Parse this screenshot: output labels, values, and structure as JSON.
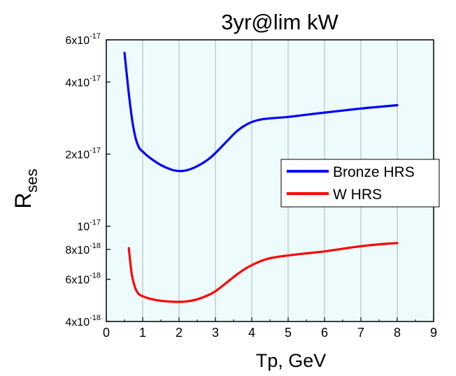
{
  "chart_data": {
    "type": "line",
    "title": "3yr@lim kW",
    "xlabel": "Tp, GeV",
    "ylabel_main": "R",
    "ylabel_sub": "ses",
    "xlim": [
      0,
      9
    ],
    "ylim": [
      4e-18,
      6e-17
    ],
    "yscale": "log",
    "grid": "vertical",
    "background": "#eefbfd",
    "legend_position": "right-center",
    "x_ticks": [
      "0",
      "1",
      "2",
      "3",
      "4",
      "5",
      "6",
      "7",
      "8",
      "9"
    ],
    "y_ticks": [
      {
        "value": 6e-17,
        "mantissa": "6x10",
        "exponent": "-17"
      },
      {
        "value": 4e-17,
        "mantissa": "4x10",
        "exponent": "-17"
      },
      {
        "value": 2e-17,
        "mantissa": "2x10",
        "exponent": "-17"
      },
      {
        "value": 1e-17,
        "mantissa": "10",
        "exponent": "-17"
      },
      {
        "value": 8e-18,
        "mantissa": "8x10",
        "exponent": "-18"
      },
      {
        "value": 6e-18,
        "mantissa": "6x10",
        "exponent": "-18"
      },
      {
        "value": 4e-18,
        "mantissa": "4x10",
        "exponent": "-18"
      }
    ],
    "series": [
      {
        "name": "Bronze HRS",
        "color": "#0000ff",
        "x": [
          0.5,
          0.6,
          0.7,
          0.8,
          0.9,
          1.0,
          1.2,
          1.5,
          1.8,
          2.0,
          2.2,
          2.5,
          2.8,
          3.0,
          3.3,
          3.6,
          3.9,
          4.2,
          4.5,
          5.0,
          5.5,
          6.0,
          6.5,
          7.0,
          7.5,
          8.0
        ],
        "y": [
          5.3e-17,
          3.8e-17,
          2.85e-17,
          2.35e-17,
          2.13e-17,
          2.05e-17,
          1.93e-17,
          1.8e-17,
          1.72e-17,
          1.7e-17,
          1.71e-17,
          1.78e-17,
          1.9e-17,
          2.02e-17,
          2.25e-17,
          2.5e-17,
          2.68e-17,
          2.78e-17,
          2.82e-17,
          2.86e-17,
          2.92e-17,
          2.98e-17,
          3.04e-17,
          3.1e-17,
          3.15e-17,
          3.2e-17
        ]
      },
      {
        "name": "W HRS",
        "color": "#ff0000",
        "x": [
          0.62,
          0.7,
          0.8,
          0.9,
          1.0,
          1.2,
          1.5,
          1.8,
          2.0,
          2.2,
          2.5,
          2.8,
          3.0,
          3.3,
          3.6,
          3.9,
          4.2,
          4.5,
          5.0,
          5.5,
          6.0,
          6.5,
          7.0,
          7.5,
          8.0
        ],
        "y": [
          8.1e-18,
          6.3e-18,
          5.5e-18,
          5.2e-18,
          5.1e-18,
          4.98e-18,
          4.88e-18,
          4.84e-18,
          4.83e-18,
          4.85e-18,
          4.95e-18,
          5.15e-18,
          5.35e-18,
          5.8e-18,
          6.3e-18,
          6.75e-18,
          7.1e-18,
          7.35e-18,
          7.55e-18,
          7.7e-18,
          7.85e-18,
          8.05e-18,
          8.25e-18,
          8.4e-18,
          8.5e-18
        ]
      }
    ]
  }
}
